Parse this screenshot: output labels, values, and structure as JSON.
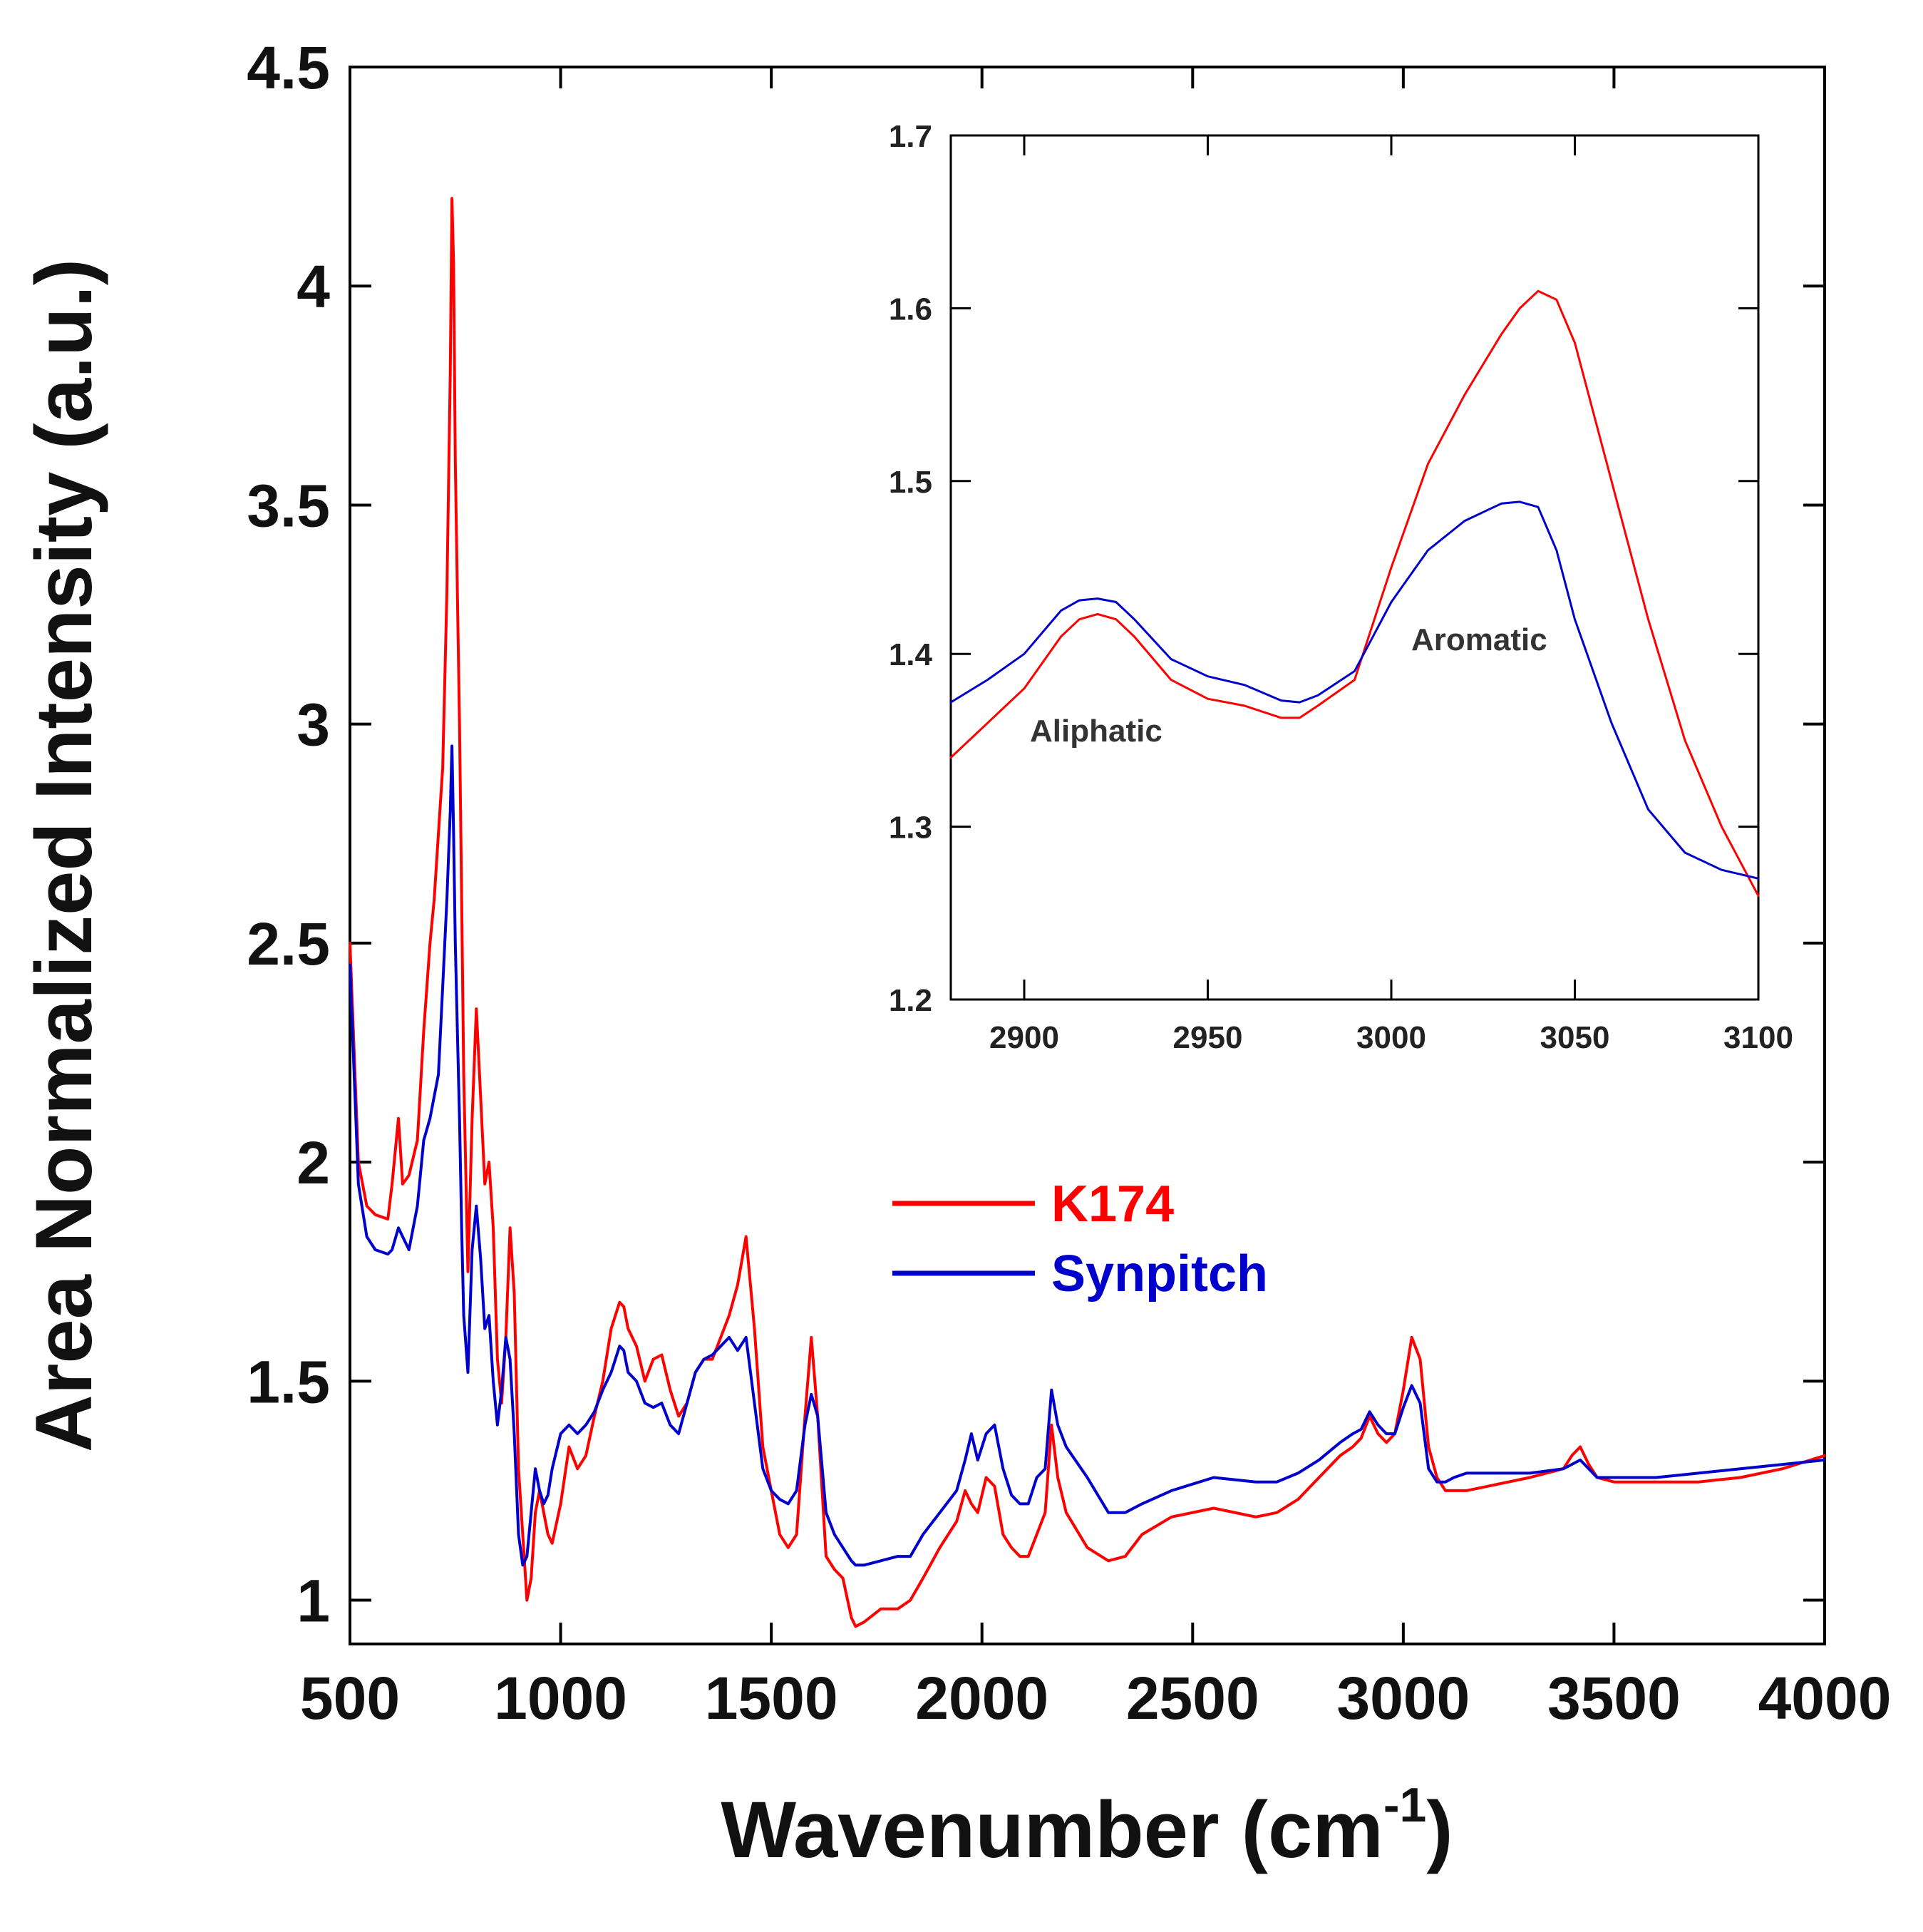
{
  "chart_data": [
    {
      "type": "line",
      "title": "",
      "xlabel": "Wavenumber (cm",
      "xlabel_sup": "-1",
      "xlabel_close": ")",
      "ylabel": "Area Normalized  Intensity (a.u.)",
      "xlim": [
        500,
        4000
      ],
      "ylim": [
        0.9,
        4.5
      ],
      "xticks": [
        500,
        1000,
        1500,
        2000,
        2500,
        3000,
        3500,
        4000
      ],
      "xtick_labels": [
        "500",
        "1000",
        "1500",
        "2000",
        "2500",
        "3000",
        "3500",
        "4000"
      ],
      "yticks": [
        1,
        1.5,
        2,
        2.5,
        3,
        3.5,
        4,
        4.5
      ],
      "ytick_labels": [
        "1",
        "1.5",
        "2",
        "2.5",
        "3",
        "3.5",
        "4",
        "4.5"
      ],
      "grid": false,
      "legend_position": "center-right",
      "series": [
        {
          "name": "K174",
          "color": "#ff0000",
          "x": [
            500,
            520,
            540,
            560,
            590,
            600,
            615,
            625,
            640,
            660,
            675,
            690,
            700,
            710,
            720,
            730,
            738,
            742,
            746,
            750,
            755,
            760,
            765,
            770,
            780,
            790,
            800,
            810,
            820,
            830,
            840,
            850,
            860,
            870,
            880,
            890,
            900,
            910,
            920,
            930,
            940,
            950,
            960,
            970,
            980,
            1000,
            1020,
            1040,
            1060,
            1080,
            1100,
            1120,
            1140,
            1150,
            1160,
            1180,
            1200,
            1220,
            1240,
            1260,
            1280,
            1300,
            1320,
            1340,
            1360,
            1380,
            1400,
            1420,
            1440,
            1460,
            1480,
            1500,
            1520,
            1540,
            1560,
            1580,
            1595,
            1610,
            1630,
            1650,
            1670,
            1690,
            1700,
            1720,
            1760,
            1800,
            1830,
            1860,
            1900,
            1940,
            1960,
            1975,
            1990,
            2010,
            2030,
            2050,
            2070,
            2090,
            2110,
            2130,
            2150,
            2165,
            2180,
            2200,
            2250,
            2300,
            2340,
            2380,
            2450,
            2550,
            2650,
            2700,
            2750,
            2800,
            2850,
            2880,
            2900,
            2920,
            2940,
            2960,
            2980,
            3000,
            3020,
            3040,
            3060,
            3080,
            3100,
            3120,
            3150,
            3200,
            3300,
            3380,
            3400,
            3420,
            3440,
            3460,
            3500,
            3600,
            3700,
            3800,
            3900,
            4000
          ],
          "y": [
            2.5,
            2.0,
            1.9,
            1.88,
            1.87,
            1.95,
            2.1,
            1.95,
            1.97,
            2.05,
            2.3,
            2.5,
            2.6,
            2.75,
            2.9,
            3.3,
            3.8,
            4.2,
            4.05,
            3.6,
            3.3,
            3.0,
            2.6,
            2.2,
            1.75,
            2.1,
            2.35,
            2.15,
            1.95,
            2.0,
            1.85,
            1.55,
            1.45,
            1.6,
            1.85,
            1.7,
            1.3,
            1.15,
            1.0,
            1.05,
            1.2,
            1.25,
            1.2,
            1.15,
            1.13,
            1.22,
            1.35,
            1.3,
            1.33,
            1.42,
            1.5,
            1.62,
            1.68,
            1.67,
            1.62,
            1.58,
            1.5,
            1.55,
            1.56,
            1.48,
            1.42,
            1.45,
            1.52,
            1.55,
            1.55,
            1.6,
            1.65,
            1.72,
            1.83,
            1.62,
            1.35,
            1.25,
            1.15,
            1.12,
            1.15,
            1.42,
            1.6,
            1.42,
            1.1,
            1.07,
            1.05,
            0.96,
            0.94,
            0.95,
            0.98,
            0.98,
            1.0,
            1.05,
            1.12,
            1.18,
            1.25,
            1.22,
            1.2,
            1.28,
            1.26,
            1.15,
            1.12,
            1.1,
            1.1,
            1.15,
            1.2,
            1.4,
            1.28,
            1.2,
            1.12,
            1.09,
            1.1,
            1.15,
            1.19,
            1.21,
            1.19,
            1.2,
            1.23,
            1.28,
            1.33,
            1.35,
            1.37,
            1.42,
            1.38,
            1.36,
            1.38,
            1.48,
            1.6,
            1.55,
            1.35,
            1.28,
            1.25,
            1.25,
            1.25,
            1.26,
            1.28,
            1.3,
            1.33,
            1.35,
            1.31,
            1.28,
            1.27,
            1.27,
            1.27,
            1.28,
            1.3,
            1.33
          ]
        },
        {
          "name": "Synpitch",
          "color": "#0000cc",
          "x": [
            500,
            520,
            540,
            560,
            590,
            600,
            615,
            625,
            640,
            660,
            675,
            690,
            700,
            710,
            720,
            730,
            738,
            742,
            746,
            750,
            755,
            760,
            765,
            770,
            780,
            790,
            800,
            810,
            820,
            830,
            840,
            850,
            860,
            870,
            880,
            890,
            900,
            910,
            920,
            930,
            940,
            950,
            960,
            970,
            980,
            1000,
            1020,
            1040,
            1060,
            1080,
            1100,
            1120,
            1140,
            1150,
            1160,
            1180,
            1200,
            1220,
            1240,
            1260,
            1280,
            1300,
            1320,
            1340,
            1360,
            1380,
            1400,
            1420,
            1440,
            1460,
            1480,
            1500,
            1520,
            1540,
            1560,
            1580,
            1595,
            1610,
            1630,
            1650,
            1670,
            1690,
            1700,
            1720,
            1760,
            1800,
            1830,
            1860,
            1900,
            1940,
            1960,
            1975,
            1990,
            2010,
            2030,
            2050,
            2070,
            2090,
            2110,
            2130,
            2150,
            2165,
            2180,
            2200,
            2250,
            2300,
            2340,
            2380,
            2450,
            2550,
            2650,
            2700,
            2750,
            2800,
            2850,
            2880,
            2900,
            2920,
            2940,
            2960,
            2980,
            3000,
            3020,
            3040,
            3060,
            3080,
            3100,
            3120,
            3150,
            3200,
            3300,
            3380,
            3400,
            3420,
            3440,
            3460,
            3500,
            3600,
            3700,
            3800,
            3900,
            4000
          ],
          "y": [
            2.45,
            1.95,
            1.83,
            1.8,
            1.79,
            1.8,
            1.85,
            1.83,
            1.8,
            1.9,
            2.05,
            2.1,
            2.15,
            2.2,
            2.4,
            2.6,
            2.8,
            2.95,
            2.75,
            2.5,
            2.3,
            2.1,
            1.85,
            1.65,
            1.52,
            1.8,
            1.9,
            1.78,
            1.62,
            1.65,
            1.5,
            1.4,
            1.48,
            1.6,
            1.55,
            1.38,
            1.15,
            1.08,
            1.1,
            1.2,
            1.3,
            1.25,
            1.22,
            1.24,
            1.3,
            1.38,
            1.4,
            1.38,
            1.4,
            1.43,
            1.48,
            1.52,
            1.58,
            1.57,
            1.52,
            1.5,
            1.45,
            1.44,
            1.45,
            1.4,
            1.38,
            1.45,
            1.52,
            1.55,
            1.56,
            1.58,
            1.6,
            1.57,
            1.6,
            1.45,
            1.3,
            1.25,
            1.23,
            1.22,
            1.25,
            1.4,
            1.47,
            1.42,
            1.2,
            1.15,
            1.12,
            1.09,
            1.08,
            1.08,
            1.09,
            1.1,
            1.1,
            1.15,
            1.2,
            1.25,
            1.32,
            1.38,
            1.32,
            1.38,
            1.4,
            1.3,
            1.24,
            1.22,
            1.22,
            1.28,
            1.3,
            1.48,
            1.4,
            1.35,
            1.28,
            1.2,
            1.2,
            1.22,
            1.25,
            1.28,
            1.27,
            1.27,
            1.29,
            1.32,
            1.36,
            1.38,
            1.39,
            1.43,
            1.4,
            1.38,
            1.38,
            1.44,
            1.49,
            1.45,
            1.3,
            1.27,
            1.27,
            1.28,
            1.29,
            1.29,
            1.29,
            1.3,
            1.31,
            1.32,
            1.3,
            1.28,
            1.28,
            1.28,
            1.29,
            1.3,
            1.31,
            1.32
          ]
        }
      ]
    },
    {
      "type": "line",
      "title": "",
      "xlabel": "",
      "ylabel": "",
      "xlim": [
        2880,
        3100
      ],
      "ylim": [
        1.2,
        1.7
      ],
      "xticks": [
        2900,
        2950,
        3000,
        3050,
        3100
      ],
      "xtick_labels": [
        "2900",
        "2950",
        "3000",
        "3050",
        "3100"
      ],
      "yticks": [
        1.2,
        1.3,
        1.4,
        1.5,
        1.6,
        1.7
      ],
      "ytick_labels": [
        "1.2",
        "1.3",
        "1.4",
        "1.5",
        "1.6",
        "1.7"
      ],
      "grid": false,
      "annotations": [
        {
          "text": "Aliphatic",
          "x": 2925,
          "y": 1.35
        },
        {
          "text": "Aromatic",
          "x": 3028,
          "y": 1.405
        }
      ],
      "series": [
        {
          "name": "K174",
          "color": "#ff0000",
          "x": [
            2880,
            2890,
            2900,
            2910,
            2915,
            2920,
            2925,
            2930,
            2940,
            2950,
            2960,
            2970,
            2975,
            2980,
            2990,
            3000,
            3010,
            3020,
            3030,
            3035,
            3040,
            3045,
            3050,
            3060,
            3070,
            3080,
            3090,
            3100
          ],
          "y": [
            1.34,
            1.36,
            1.38,
            1.41,
            1.42,
            1.423,
            1.42,
            1.41,
            1.385,
            1.374,
            1.37,
            1.363,
            1.363,
            1.37,
            1.385,
            1.45,
            1.51,
            1.55,
            1.585,
            1.6,
            1.61,
            1.605,
            1.58,
            1.5,
            1.42,
            1.35,
            1.3,
            1.26
          ]
        },
        {
          "name": "Synpitch",
          "color": "#0000cc",
          "x": [
            2880,
            2890,
            2900,
            2910,
            2915,
            2920,
            2925,
            2930,
            2940,
            2950,
            2960,
            2970,
            2975,
            2980,
            2990,
            3000,
            3010,
            3020,
            3030,
            3035,
            3040,
            3045,
            3050,
            3060,
            3070,
            3080,
            3090,
            3100
          ],
          "y": [
            1.372,
            1.385,
            1.4,
            1.425,
            1.431,
            1.432,
            1.43,
            1.42,
            1.397,
            1.387,
            1.382,
            1.373,
            1.372,
            1.376,
            1.39,
            1.43,
            1.46,
            1.477,
            1.487,
            1.488,
            1.485,
            1.46,
            1.42,
            1.36,
            1.31,
            1.285,
            1.275,
            1.27
          ]
        }
      ]
    }
  ]
}
